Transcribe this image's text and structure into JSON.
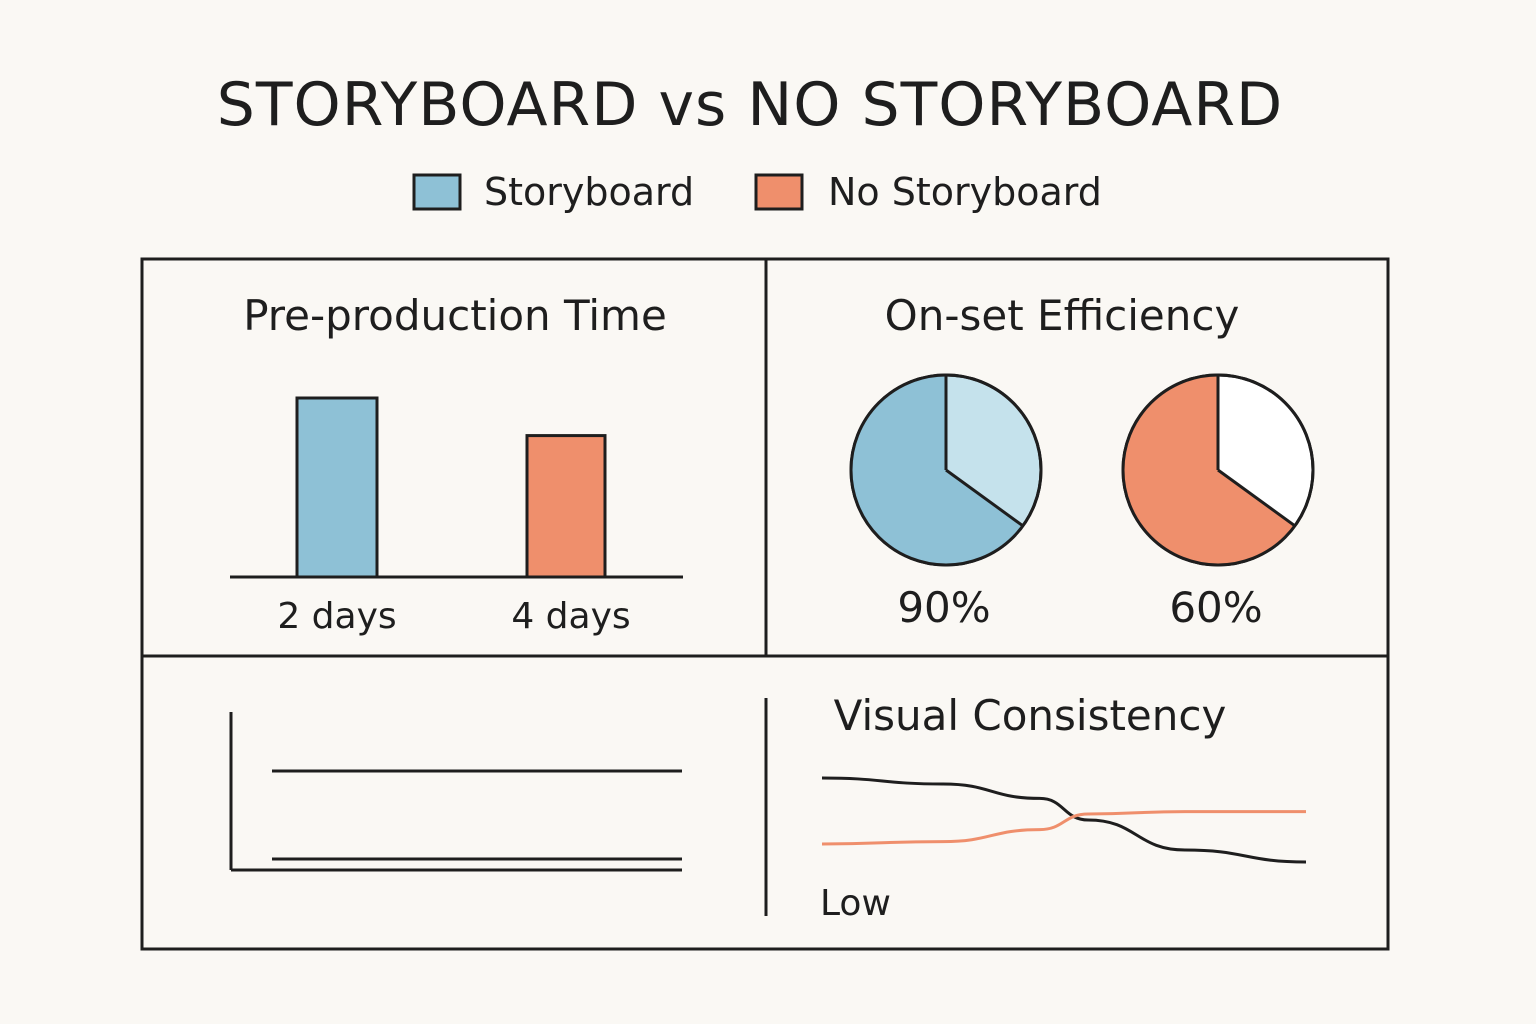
{
  "title": "STORYBOARD vs NO STORYBOARD",
  "legend": [
    {
      "label": "Storyboard",
      "color": "#8ec1d6"
    },
    {
      "label": "No Storyboard",
      "color": "#ef8f6c"
    }
  ],
  "colors": {
    "storyboard": "#8ec1d6",
    "storyboard_light": "#c5e2ec",
    "no_storyboard": "#ef8f6c",
    "ink": "#1e1e1e",
    "background": "#faf8f4"
  },
  "chart_data": [
    {
      "type": "bar",
      "title": "Pre-production Time",
      "categories": [
        "2 days",
        "4 days"
      ],
      "series": [
        {
          "name": "Storyboard",
          "values": [
            1.0,
            null
          ]
        },
        {
          "name": "No Storyboard",
          "values": [
            null,
            0.79
          ]
        }
      ],
      "ylim": [
        0,
        1.0
      ]
    },
    {
      "type": "pie",
      "title": "On-set Efficiency",
      "series": [
        {
          "name": "Storyboard",
          "label": "90%",
          "value": 90
        },
        {
          "name": "No Storyboard",
          "label": "60%",
          "value": 60
        }
      ]
    },
    {
      "type": "line",
      "title": "",
      "series": [
        {
          "y": [
            0.9,
            0.9
          ]
        },
        {
          "y": [
            0.1,
            0.1
          ]
        }
      ],
      "xlim": [
        0,
        1
      ],
      "ylim": [
        0,
        1
      ]
    },
    {
      "type": "line",
      "title": "Visual Consistency",
      "ylabel": "Low",
      "x": [
        0,
        0.25,
        0.45,
        0.55,
        0.75,
        1.0
      ],
      "series": [
        {
          "name": "Storyboard",
          "values": [
            0.85,
            0.8,
            0.68,
            0.5,
            0.25,
            0.15
          ]
        },
        {
          "name": "No Storyboard",
          "values": [
            0.3,
            0.32,
            0.42,
            0.55,
            0.57,
            0.57
          ]
        }
      ],
      "xlim": [
        0,
        1
      ],
      "ylim": [
        0,
        1
      ]
    }
  ]
}
